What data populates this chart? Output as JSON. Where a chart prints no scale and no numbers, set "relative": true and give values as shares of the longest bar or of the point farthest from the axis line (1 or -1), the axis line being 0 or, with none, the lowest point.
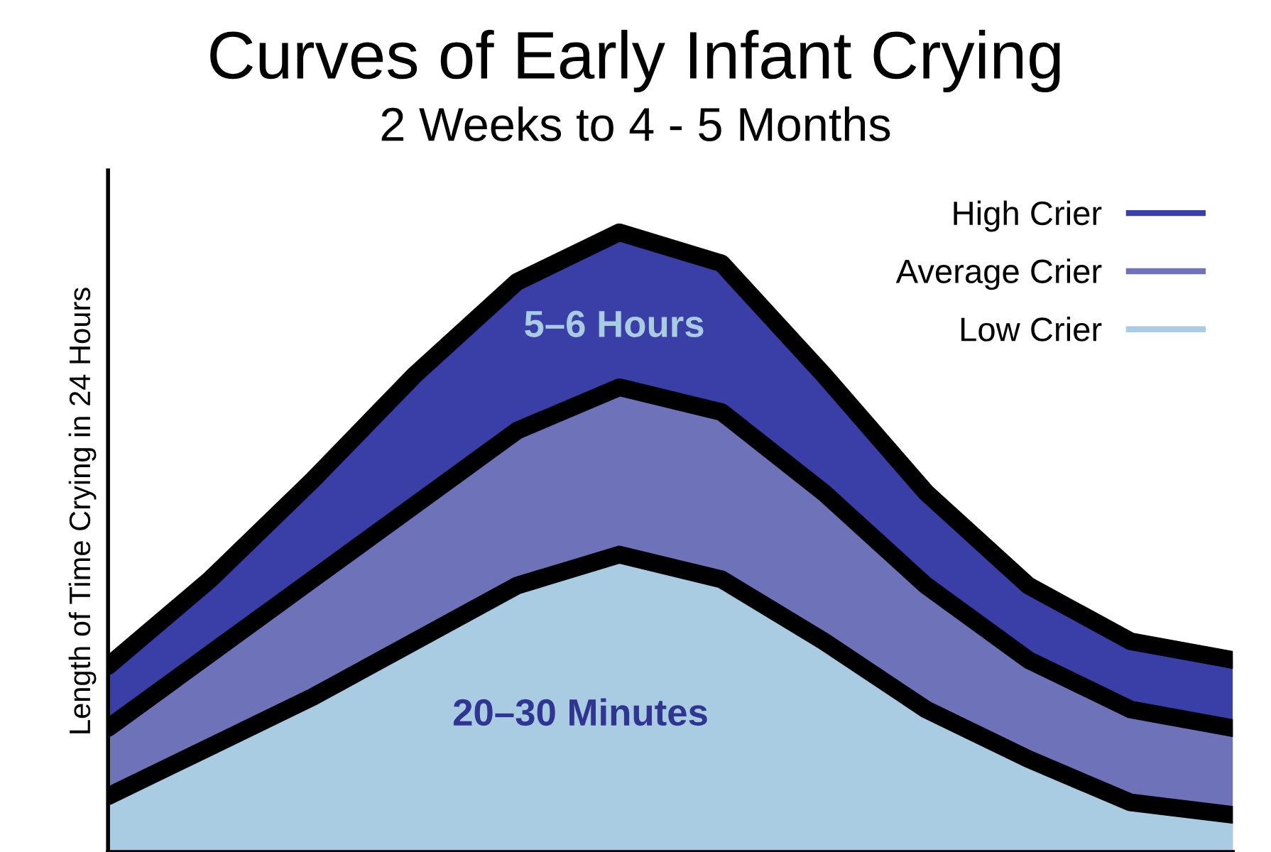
{
  "chart_data": {
    "type": "area",
    "title": "Curves of Early Infant Crying",
    "subtitle": "2 Weeks to 4 - 5 Months",
    "ylabel": "Length of Time Crying in 24 Hours",
    "relative": true,
    "categories": [
      null,
      null,
      null,
      null,
      null,
      null,
      null,
      null,
      null,
      null,
      null,
      null
    ],
    "series": [
      {
        "name": "High Crier",
        "color": "#3a3fa8",
        "values": [
          0.3,
          0.44,
          0.6,
          0.77,
          0.92,
          1.0,
          0.95,
          0.77,
          0.58,
          0.43,
          0.34,
          0.31
        ]
      },
      {
        "name": "Average Crier",
        "color": "#6e72b8",
        "values": [
          0.2,
          0.32,
          0.44,
          0.56,
          0.68,
          0.75,
          0.71,
          0.58,
          0.43,
          0.31,
          0.23,
          0.2
        ]
      },
      {
        "name": "Low Crier",
        "color": "#a9cce3",
        "values": [
          0.09,
          0.17,
          0.25,
          0.34,
          0.43,
          0.48,
          0.44,
          0.34,
          0.23,
          0.15,
          0.08,
          0.06
        ]
      }
    ],
    "annotations": [
      "5–6 Hours",
      "20–30 Minutes"
    ],
    "legend": "top right",
    "grid": false
  }
}
